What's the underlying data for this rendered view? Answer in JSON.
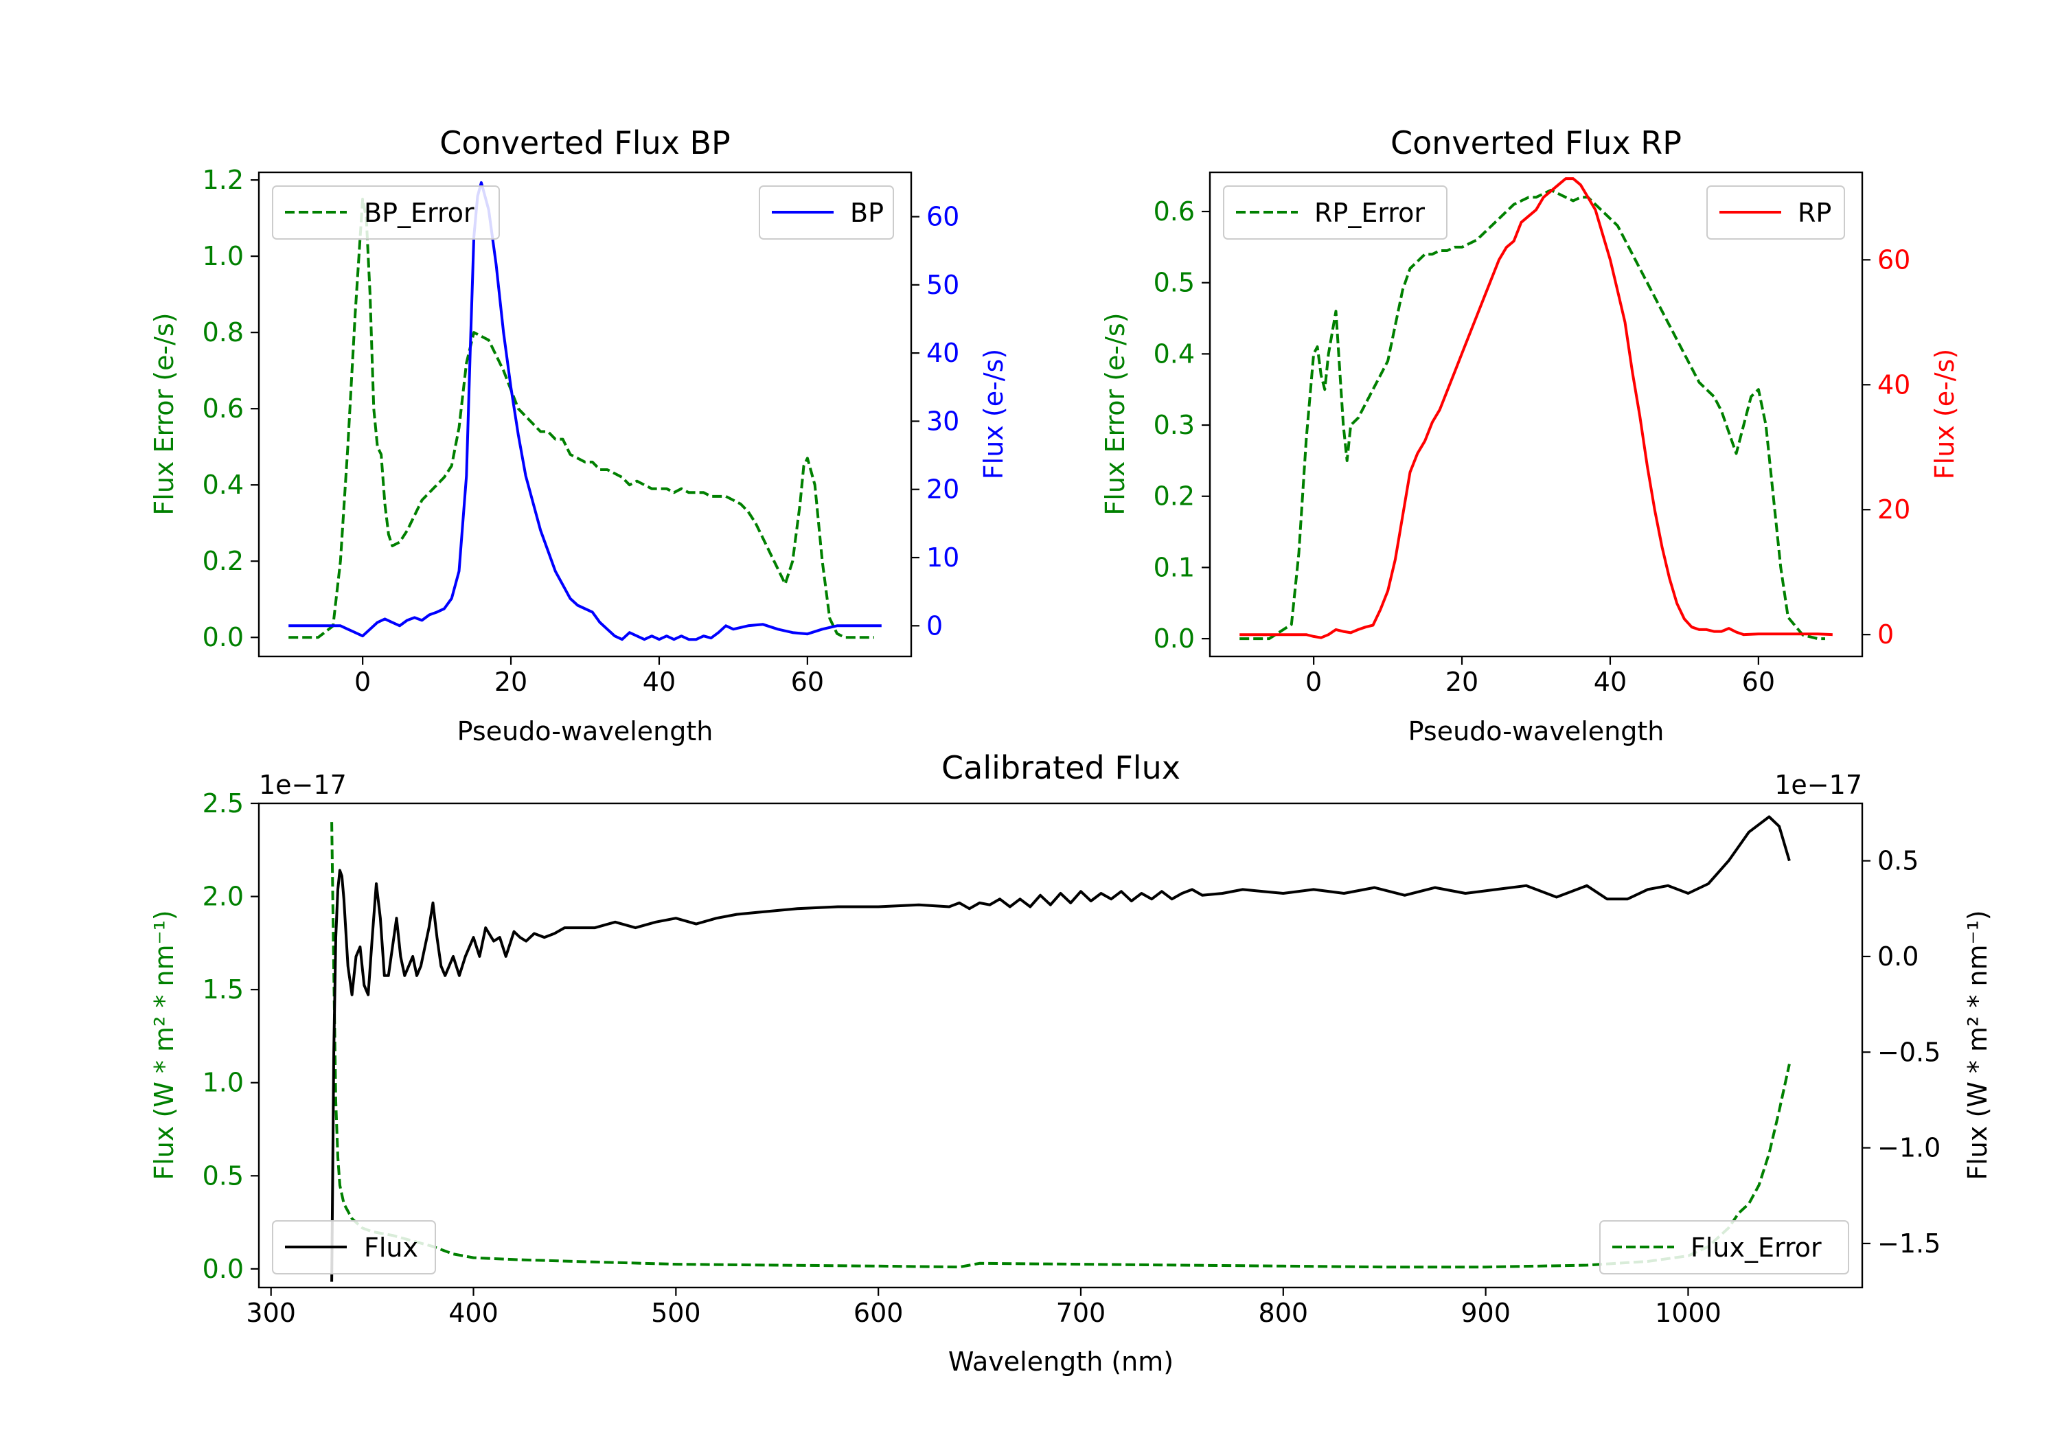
{
  "colors": {
    "bp": "#0000ff",
    "rp": "#ff0000",
    "error": "#008000",
    "flux": "#000000"
  },
  "chart_data": [
    {
      "id": "bp",
      "type": "line",
      "title": "Converted Flux BP",
      "xlabel": "Pseudo-wavelength",
      "ylabel_left": "Flux Error (e-/s)",
      "ylabel_right": "Flux (e-/s)",
      "xlim": [
        -14,
        74
      ],
      "ylim_left": [
        -0.05,
        1.22
      ],
      "ylim_right": [
        -4.5,
        66.5
      ],
      "xticks": [
        0,
        20,
        40,
        60
      ],
      "yticks_left": [
        0.0,
        0.2,
        0.4,
        0.6,
        0.8,
        1.0,
        1.2
      ],
      "yticks_left_labels": [
        "0.0",
        "0.2",
        "0.4",
        "0.6",
        "0.8",
        "1.0",
        "1.2"
      ],
      "yticks_right": [
        0,
        10,
        20,
        30,
        40,
        50,
        60
      ],
      "yticks_right_labels": [
        "0",
        "10",
        "20",
        "30",
        "40",
        "50",
        "60"
      ],
      "legend_left": "BP_Error",
      "legend_right": "BP",
      "series": [
        {
          "name": "BP_Error",
          "axis": "left",
          "style": "dashed",
          "color": "#008000",
          "x": [
            -10,
            -8,
            -6,
            -4,
            -3,
            -2,
            -1,
            0,
            0.5,
            1,
            1.5,
            2,
            2.5,
            3,
            3.5,
            4,
            5,
            6,
            7,
            8,
            9,
            10,
            11,
            12,
            13,
            14,
            15,
            16,
            17,
            18,
            19,
            20,
            21,
            22,
            23,
            24,
            25,
            26,
            27,
            28,
            29,
            30,
            31,
            32,
            33,
            34,
            35,
            36,
            37,
            38,
            39,
            40,
            41,
            42,
            43,
            44,
            45,
            46,
            47,
            48,
            49,
            50,
            51,
            52,
            53,
            54,
            55,
            56,
            57,
            58,
            59,
            59.5,
            60,
            61,
            62,
            63,
            64,
            65,
            66,
            67,
            68,
            69
          ],
          "values": [
            0,
            0,
            0,
            0.03,
            0.2,
            0.5,
            0.85,
            1.15,
            1.1,
            0.9,
            0.6,
            0.5,
            0.48,
            0.35,
            0.27,
            0.24,
            0.25,
            0.28,
            0.32,
            0.36,
            0.38,
            0.4,
            0.42,
            0.45,
            0.55,
            0.72,
            0.8,
            0.79,
            0.78,
            0.74,
            0.7,
            0.65,
            0.6,
            0.58,
            0.56,
            0.54,
            0.54,
            0.52,
            0.52,
            0.48,
            0.47,
            0.46,
            0.46,
            0.44,
            0.44,
            0.43,
            0.42,
            0.4,
            0.41,
            0.4,
            0.39,
            0.39,
            0.39,
            0.38,
            0.39,
            0.38,
            0.38,
            0.38,
            0.37,
            0.37,
            0.37,
            0.36,
            0.35,
            0.33,
            0.3,
            0.26,
            0.22,
            0.18,
            0.14,
            0.2,
            0.35,
            0.45,
            0.47,
            0.4,
            0.2,
            0.05,
            0.01,
            0,
            0,
            0,
            0,
            0
          ]
        },
        {
          "name": "BP",
          "axis": "right",
          "style": "solid",
          "color": "#0000ff",
          "x": [
            -10,
            -6,
            -3,
            -2,
            -1,
            0,
            1,
            2,
            3,
            4,
            5,
            6,
            7,
            8,
            9,
            10,
            11,
            12,
            13,
            14,
            14.5,
            15,
            15.5,
            16,
            17,
            18,
            19,
            20,
            21,
            22,
            23,
            24,
            25,
            26,
            27,
            28,
            29,
            30,
            31,
            32,
            33,
            34,
            35,
            36,
            37,
            38,
            39,
            40,
            41,
            42,
            43,
            44,
            45,
            46,
            47,
            48,
            49,
            50,
            52,
            54,
            56,
            58,
            60,
            62,
            64,
            66,
            68,
            70
          ],
          "values": [
            0,
            0,
            0,
            -0.5,
            -1,
            -1.5,
            -0.5,
            0.5,
            1,
            0.5,
            0,
            0.8,
            1.2,
            0.8,
            1.6,
            2,
            2.5,
            4,
            8,
            22,
            40,
            57,
            63,
            65,
            61,
            53,
            43,
            35,
            28,
            22,
            18,
            14,
            11,
            8,
            6,
            4,
            3,
            2.5,
            2,
            0.5,
            -0.5,
            -1.5,
            -2,
            -1,
            -1.5,
            -2,
            -1.5,
            -2,
            -1.5,
            -2,
            -1.5,
            -2,
            -2,
            -1.5,
            -1.8,
            -1,
            0,
            -0.5,
            0,
            0.2,
            -0.5,
            -1,
            -1.2,
            -0.5,
            0,
            0,
            0,
            0
          ]
        }
      ]
    },
    {
      "id": "rp",
      "type": "line",
      "title": "Converted Flux RP",
      "xlabel": "Pseudo-wavelength",
      "ylabel_left": "Flux Error (e-/s)",
      "ylabel_right": "Flux (e-/s)",
      "xlim": [
        -14,
        74
      ],
      "ylim_left": [
        -0.025,
        0.655
      ],
      "ylim_right": [
        -3.5,
        74
      ],
      "xticks": [
        0,
        20,
        40,
        60
      ],
      "yticks_left": [
        0.0,
        0.1,
        0.2,
        0.3,
        0.4,
        0.5,
        0.6
      ],
      "yticks_left_labels": [
        "0.0",
        "0.1",
        "0.2",
        "0.3",
        "0.4",
        "0.5",
        "0.6"
      ],
      "yticks_right": [
        0,
        20,
        40,
        60
      ],
      "yticks_right_labels": [
        "0",
        "20",
        "40",
        "60"
      ],
      "legend_left": "RP_Error",
      "legend_right": "RP",
      "series": [
        {
          "name": "RP_Error",
          "axis": "left",
          "style": "dashed",
          "color": "#008000",
          "x": [
            -10,
            -6,
            -3,
            -2,
            -1,
            0,
            0.5,
            1,
            1.5,
            2,
            2.5,
            3,
            3.5,
            4,
            4.5,
            5,
            6,
            7,
            8,
            9,
            10,
            11,
            12,
            13,
            14,
            15,
            16,
            17,
            18,
            19,
            20,
            21,
            22,
            23,
            24,
            25,
            26,
            27,
            28,
            29,
            30,
            31,
            32,
            33,
            34,
            35,
            36,
            37,
            38,
            39,
            40,
            41,
            42,
            43,
            44,
            45,
            46,
            47,
            48,
            49,
            50,
            51,
            52,
            53,
            54,
            55,
            56,
            57,
            58,
            59,
            60,
            61,
            62,
            63,
            64,
            66,
            68,
            69
          ],
          "values": [
            0,
            0,
            0.02,
            0.12,
            0.28,
            0.4,
            0.41,
            0.37,
            0.35,
            0.4,
            0.43,
            0.46,
            0.38,
            0.3,
            0.25,
            0.3,
            0.31,
            0.33,
            0.35,
            0.37,
            0.39,
            0.44,
            0.49,
            0.52,
            0.53,
            0.54,
            0.54,
            0.545,
            0.545,
            0.55,
            0.55,
            0.555,
            0.56,
            0.57,
            0.58,
            0.59,
            0.6,
            0.61,
            0.615,
            0.62,
            0.62,
            0.625,
            0.63,
            0.625,
            0.62,
            0.615,
            0.62,
            0.62,
            0.61,
            0.6,
            0.59,
            0.58,
            0.56,
            0.54,
            0.52,
            0.5,
            0.48,
            0.46,
            0.44,
            0.42,
            0.4,
            0.38,
            0.36,
            0.35,
            0.34,
            0.32,
            0.29,
            0.26,
            0.3,
            0.34,
            0.35,
            0.3,
            0.2,
            0.1,
            0.03,
            0.005,
            0,
            0
          ]
        },
        {
          "name": "RP",
          "axis": "right",
          "style": "solid",
          "color": "#ff0000",
          "x": [
            -10,
            -6,
            -3,
            -1,
            0,
            1,
            2,
            3,
            4,
            5,
            6,
            7,
            8,
            9,
            10,
            11,
            12,
            13,
            14,
            15,
            16,
            17,
            18,
            19,
            20,
            21,
            22,
            23,
            24,
            25,
            26,
            27,
            28,
            29,
            30,
            31,
            32,
            33,
            34,
            35,
            36,
            37,
            38,
            39,
            40,
            41,
            42,
            43,
            44,
            45,
            46,
            47,
            48,
            49,
            50,
            51,
            52,
            53,
            54,
            55,
            56,
            57,
            58,
            60,
            62,
            64,
            66,
            68,
            70
          ],
          "values": [
            0,
            0,
            0,
            0,
            -0.3,
            -0.5,
            0,
            0.8,
            0.5,
            0.3,
            0.8,
            1.2,
            1.5,
            4,
            7,
            12,
            19,
            26,
            29,
            31,
            34,
            36,
            39,
            42,
            45,
            48,
            51,
            54,
            57,
            60,
            62,
            63,
            66,
            67,
            68,
            70,
            71,
            72,
            73,
            73,
            72,
            70,
            68,
            64,
            60,
            55,
            50,
            42,
            35,
            27,
            20,
            14,
            9,
            5,
            2.5,
            1.2,
            0.8,
            0.8,
            0.5,
            0.5,
            1,
            0.4,
            0,
            0.1,
            0.1,
            0.1,
            0.1,
            0.1,
            0
          ]
        }
      ]
    },
    {
      "id": "calibrated",
      "type": "line",
      "title": "Calibrated Flux",
      "xlabel": "Wavelength (nm)",
      "ylabel_left": "Flux (W * m² * nm⁻¹)",
      "ylabel_right": "Flux (W * m² * nm⁻¹)",
      "offset_left": "1e−17",
      "offset_right": "1e−17",
      "xlim": [
        294,
        1086
      ],
      "ylim_left": [
        -0.1,
        2.5
      ],
      "ylim_right": [
        -1.73,
        0.8
      ],
      "xticks": [
        300,
        400,
        500,
        600,
        700,
        800,
        900,
        1000
      ],
      "yticks_left": [
        0.0,
        0.5,
        1.0,
        1.5,
        2.0,
        2.5
      ],
      "yticks_left_labels": [
        "0.0",
        "0.5",
        "1.0",
        "1.5",
        "2.0",
        "2.5"
      ],
      "yticks_right": [
        -1.5,
        -1.0,
        -0.5,
        0.0,
        0.5
      ],
      "yticks_right_labels": [
        "−1.5",
        "−1.0",
        "−0.5",
        "0.0",
        "0.5"
      ],
      "legend_left": "Flux",
      "legend_right": "Flux_Error",
      "series": [
        {
          "name": "Flux_Error",
          "axis": "left",
          "style": "dashed",
          "color": "#008000",
          "x": [
            330,
            331,
            332,
            333,
            334,
            336,
            340,
            345,
            350,
            360,
            370,
            380,
            390,
            400,
            420,
            450,
            500,
            550,
            600,
            640,
            650,
            700,
            750,
            800,
            850,
            900,
            950,
            980,
            1000,
            1010,
            1020,
            1025,
            1030,
            1035,
            1040,
            1045,
            1050
          ],
          "values": [
            2.4,
            1.6,
            0.9,
            0.6,
            0.45,
            0.35,
            0.27,
            0.22,
            0.2,
            0.18,
            0.15,
            0.12,
            0.08,
            0.06,
            0.05,
            0.04,
            0.025,
            0.02,
            0.015,
            0.01,
            0.03,
            0.025,
            0.02,
            0.015,
            0.01,
            0.01,
            0.02,
            0.04,
            0.07,
            0.12,
            0.22,
            0.3,
            0.35,
            0.45,
            0.62,
            0.85,
            1.1
          ]
        },
        {
          "name": "Flux",
          "axis": "right",
          "style": "solid",
          "color": "#000000",
          "x": [
            330,
            331,
            332,
            333,
            334,
            335,
            336,
            338,
            340,
            342,
            344,
            346,
            348,
            350,
            352,
            354,
            356,
            358,
            360,
            362,
            364,
            366,
            368,
            370,
            372,
            374,
            376,
            378,
            380,
            382,
            384,
            386,
            388,
            390,
            393,
            396,
            400,
            403,
            406,
            410,
            413,
            416,
            420,
            423,
            426,
            430,
            435,
            440,
            445,
            450,
            460,
            470,
            480,
            490,
            500,
            510,
            520,
            530,
            540,
            560,
            580,
            600,
            620,
            635,
            640,
            645,
            650,
            655,
            660,
            665,
            670,
            675,
            680,
            685,
            690,
            695,
            700,
            705,
            710,
            715,
            720,
            725,
            730,
            735,
            740,
            745,
            750,
            755,
            760,
            770,
            780,
            790,
            800,
            815,
            830,
            845,
            860,
            875,
            890,
            905,
            920,
            935,
            950,
            960,
            970,
            980,
            990,
            1000,
            1010,
            1020,
            1030,
            1040,
            1045,
            1050
          ],
          "values": [
            -1.7,
            -0.5,
            0.1,
            0.35,
            0.45,
            0.42,
            0.3,
            -0.05,
            -0.2,
            0.0,
            0.05,
            -0.15,
            -0.2,
            0.1,
            0.38,
            0.2,
            -0.1,
            -0.1,
            0.05,
            0.2,
            0.0,
            -0.1,
            -0.05,
            0.0,
            -0.1,
            -0.05,
            0.05,
            0.15,
            0.28,
            0.1,
            -0.05,
            -0.1,
            -0.05,
            0.0,
            -0.1,
            0.0,
            0.1,
            0.0,
            0.15,
            0.08,
            0.1,
            0.0,
            0.13,
            0.1,
            0.08,
            0.12,
            0.1,
            0.12,
            0.15,
            0.15,
            0.15,
            0.18,
            0.15,
            0.18,
            0.2,
            0.17,
            0.2,
            0.22,
            0.23,
            0.25,
            0.26,
            0.26,
            0.27,
            0.26,
            0.28,
            0.25,
            0.28,
            0.27,
            0.3,
            0.26,
            0.3,
            0.26,
            0.32,
            0.27,
            0.33,
            0.28,
            0.34,
            0.29,
            0.33,
            0.3,
            0.34,
            0.29,
            0.33,
            0.3,
            0.34,
            0.3,
            0.33,
            0.35,
            0.32,
            0.33,
            0.35,
            0.34,
            0.33,
            0.35,
            0.33,
            0.36,
            0.32,
            0.36,
            0.33,
            0.35,
            0.37,
            0.31,
            0.37,
            0.3,
            0.3,
            0.35,
            0.37,
            0.33,
            0.38,
            0.5,
            0.65,
            0.73,
            0.68,
            0.5
          ]
        }
      ]
    }
  ]
}
